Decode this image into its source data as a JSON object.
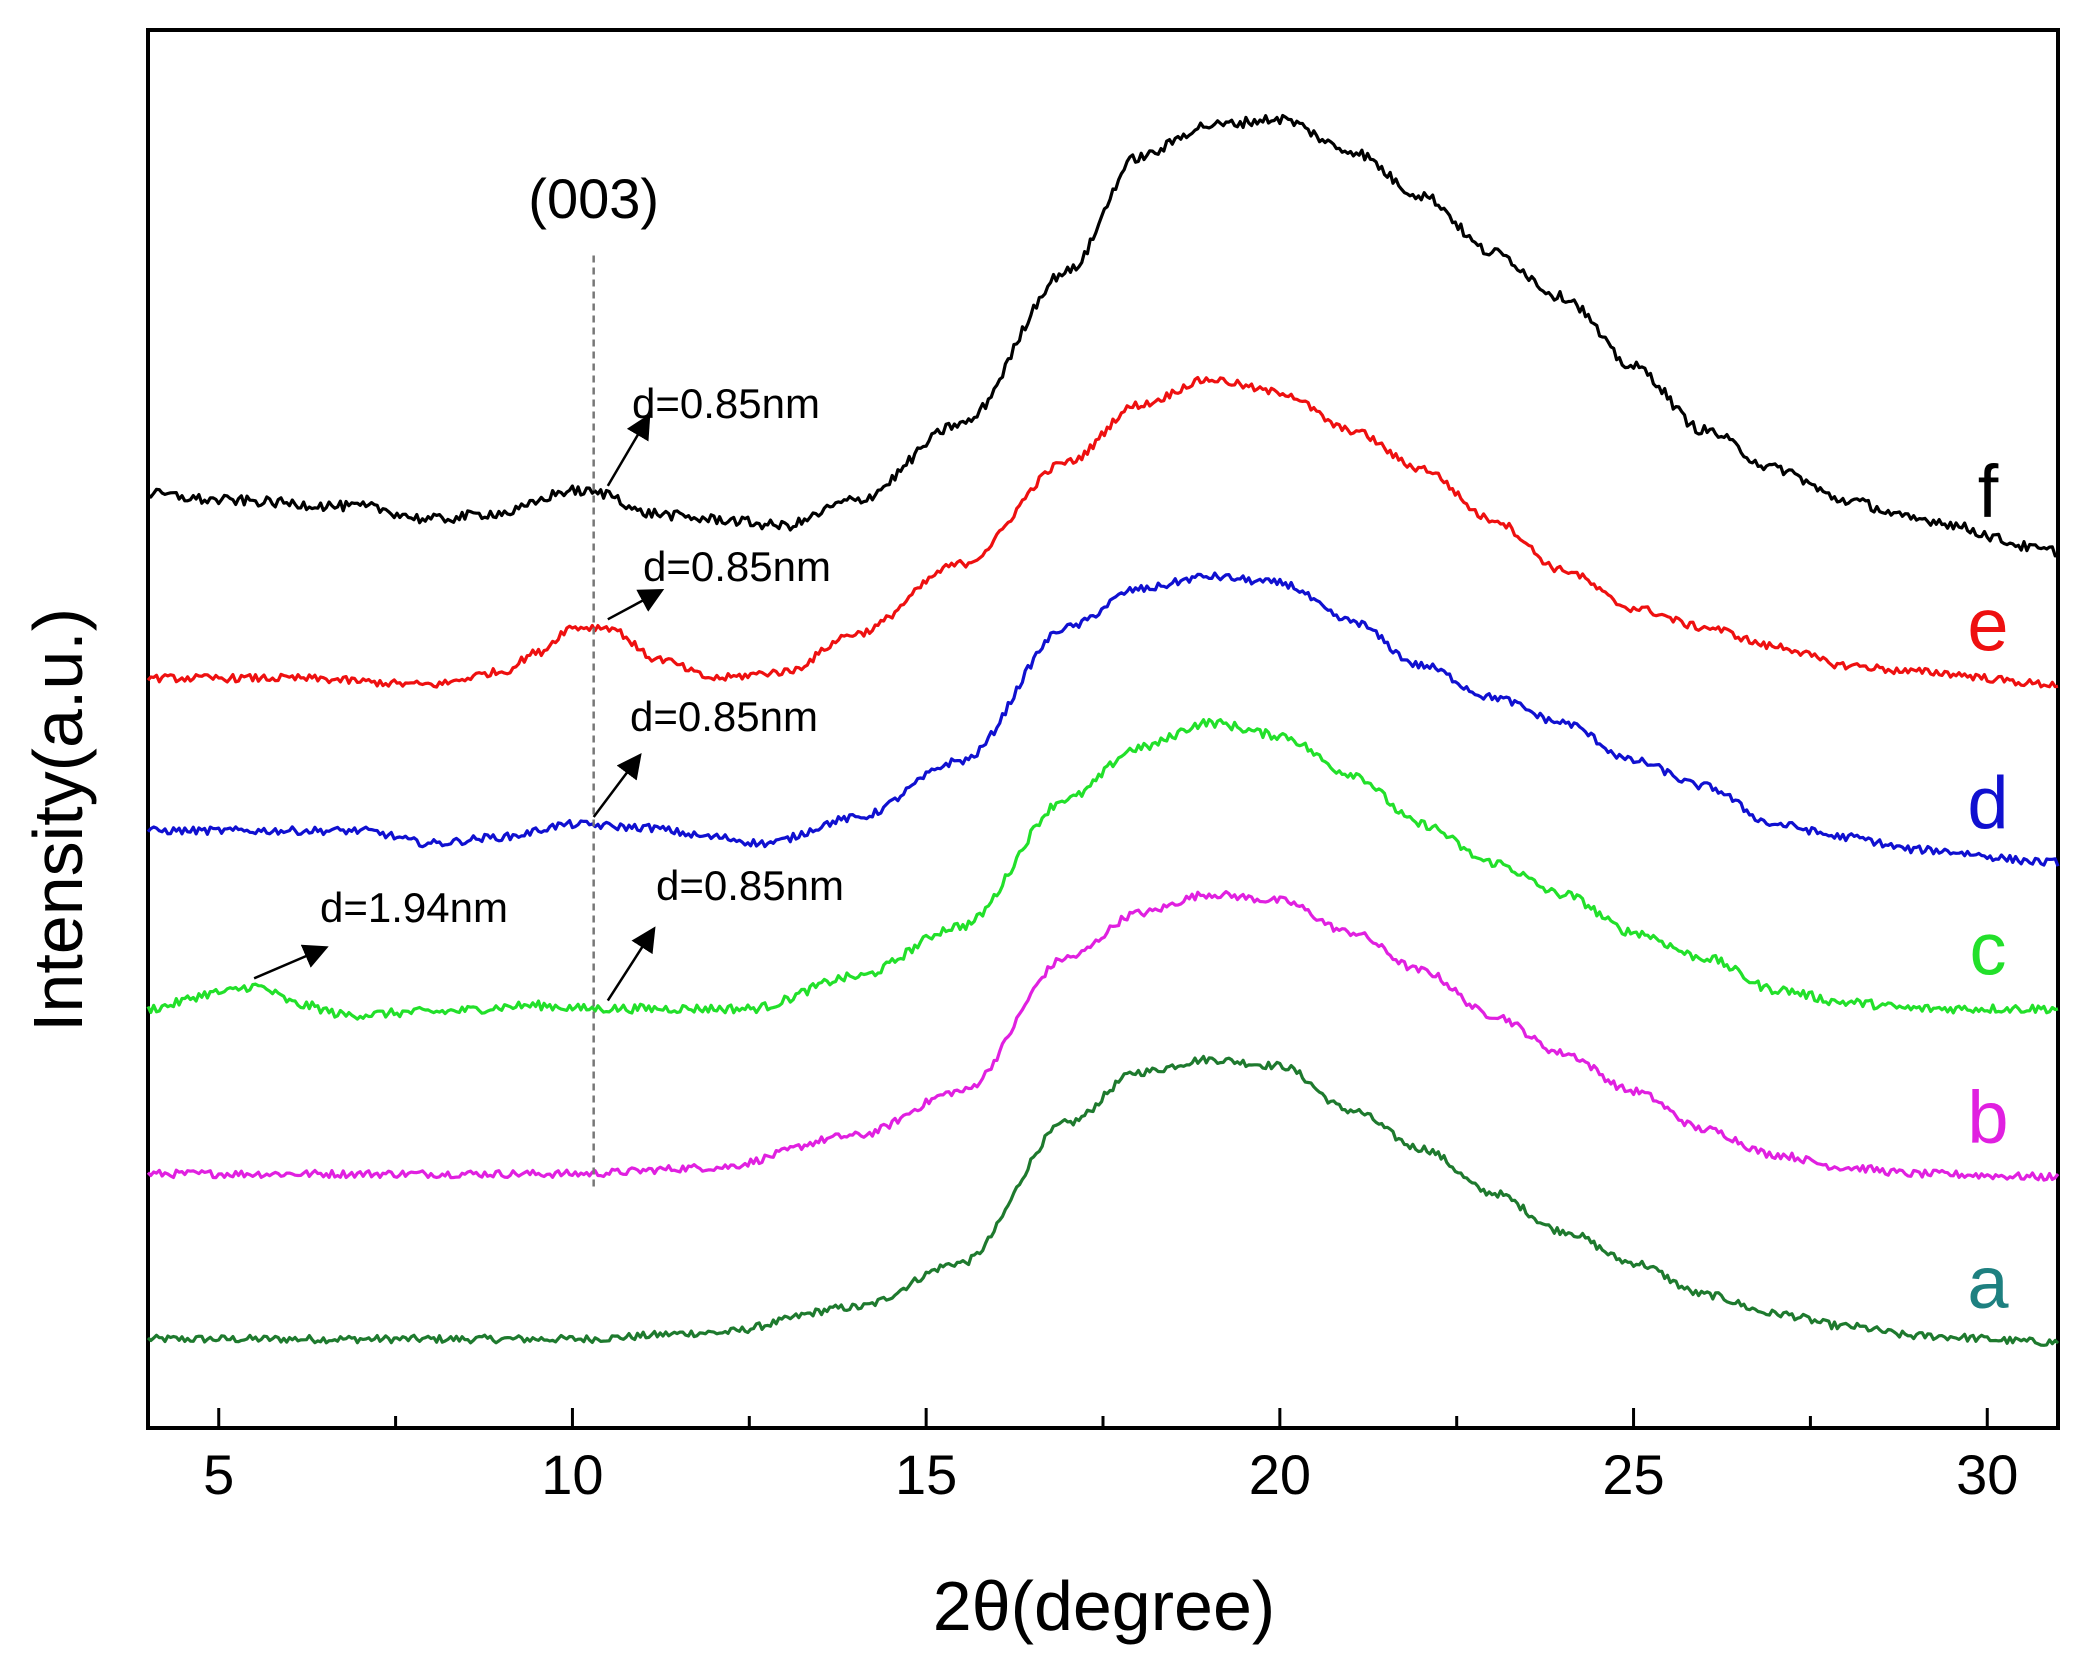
{
  "chart_data": {
    "type": "line",
    "title": "",
    "xlabel": "2θ(degree)",
    "ylabel": "Intensity(a.u.)",
    "xlim": [
      4,
      31
    ],
    "xticks": [
      5,
      10,
      15,
      20,
      25,
      30
    ],
    "xtick_labels": [
      "5",
      "10",
      "15",
      "20",
      "25",
      "30"
    ],
    "y_ticks_shown": false,
    "grid": false,
    "legend": "curve labels at right end",
    "series": [
      {
        "name": "a",
        "label": "a",
        "color": "#1e7a2e",
        "label_color": "#1e8080",
        "offset": 0,
        "noise": 0.6,
        "baseline": [
          [
            4,
            4
          ],
          [
            10,
            4
          ],
          [
            12,
            5
          ],
          [
            14,
            9
          ],
          [
            15.5,
            16
          ],
          [
            17,
            38
          ],
          [
            18,
            46
          ],
          [
            19,
            48
          ],
          [
            20,
            47
          ],
          [
            21,
            40
          ],
          [
            22,
            34
          ],
          [
            23,
            27
          ],
          [
            24,
            21
          ],
          [
            25,
            16
          ],
          [
            26,
            11
          ],
          [
            27,
            8
          ],
          [
            28,
            6
          ],
          [
            29,
            4.5
          ],
          [
            31,
            3.5
          ]
        ]
      },
      {
        "name": "b",
        "label": "b",
        "color": "#e020e0",
        "label_color": "#e020e0",
        "offset": 26,
        "noise": 0.6,
        "baseline": [
          [
            4,
            4
          ],
          [
            10,
            4
          ],
          [
            12,
            5
          ],
          [
            14,
            10
          ],
          [
            15.5,
            17
          ],
          [
            17,
            38
          ],
          [
            18,
            45
          ],
          [
            19,
            48
          ],
          [
            20,
            47
          ],
          [
            21,
            42
          ],
          [
            22,
            36
          ],
          [
            23,
            29
          ],
          [
            24,
            23
          ],
          [
            25,
            17
          ],
          [
            26,
            11
          ],
          [
            27,
            7
          ],
          [
            28,
            5
          ],
          [
            29,
            4
          ],
          [
            31,
            3.5
          ]
        ]
      },
      {
        "name": "c",
        "label": "c",
        "color": "#22e02a",
        "label_color": "#22e02a",
        "offset": 52,
        "noise": 0.7,
        "baseline": [
          [
            4,
            4
          ],
          [
            5,
            6.5
          ],
          [
            5.5,
            7.5
          ],
          [
            6.2,
            4.5
          ],
          [
            6.8,
            3
          ],
          [
            8,
            3.5
          ],
          [
            9.5,
            4.5
          ],
          [
            10.2,
            4
          ],
          [
            11,
            4
          ],
          [
            12.5,
            4
          ],
          [
            14,
            9
          ],
          [
            15.5,
            17
          ],
          [
            17,
            37
          ],
          [
            18,
            45
          ],
          [
            19,
            49
          ],
          [
            20,
            47
          ],
          [
            21,
            41
          ],
          [
            22,
            33
          ],
          [
            23,
            27
          ],
          [
            24,
            22
          ],
          [
            25,
            16
          ],
          [
            26,
            12
          ],
          [
            27,
            7
          ],
          [
            28,
            5
          ],
          [
            29,
            4
          ],
          [
            31,
            4
          ]
        ]
      },
      {
        "name": "d",
        "label": "d",
        "color": "#1010d0",
        "label_color": "#1010d0",
        "offset": 78,
        "noise": 0.6,
        "baseline": [
          [
            4,
            6
          ],
          [
            7,
            6
          ],
          [
            8,
            4
          ],
          [
            9,
            5
          ],
          [
            10,
            7
          ],
          [
            11,
            6.5
          ],
          [
            12,
            5
          ],
          [
            12.7,
            4
          ],
          [
            14,
            8
          ],
          [
            15.5,
            17
          ],
          [
            17,
            38
          ],
          [
            18,
            44
          ],
          [
            19,
            46
          ],
          [
            20,
            45
          ],
          [
            21,
            39
          ],
          [
            22,
            32
          ],
          [
            23,
            27
          ],
          [
            24,
            23
          ],
          [
            25,
            17
          ],
          [
            26,
            13
          ],
          [
            27,
            7
          ],
          [
            28,
            5
          ],
          [
            29,
            3
          ],
          [
            31,
            1
          ]
        ]
      },
      {
        "name": "e",
        "label": "e",
        "color": "#ee1010",
        "label_color": "#ee1010",
        "offset": 104,
        "noise": 0.6,
        "baseline": [
          [
            4,
            4
          ],
          [
            6,
            4
          ],
          [
            8,
            3
          ],
          [
            9,
            5
          ],
          [
            9.5,
            8
          ],
          [
            10,
            12
          ],
          [
            10.5,
            12
          ],
          [
            11.2,
            7
          ],
          [
            12,
            4
          ],
          [
            13,
            5
          ],
          [
            14,
            11
          ],
          [
            15.5,
            22
          ],
          [
            17,
            38
          ],
          [
            18,
            47
          ],
          [
            19,
            51
          ],
          [
            20,
            49
          ],
          [
            21,
            43
          ],
          [
            22,
            37
          ],
          [
            23,
            29
          ],
          [
            24,
            21
          ],
          [
            25,
            15
          ],
          [
            26,
            12
          ],
          [
            27,
            9
          ],
          [
            28,
            6
          ],
          [
            29,
            5
          ],
          [
            31,
            3
          ]
        ]
      },
      {
        "name": "f",
        "label": "f",
        "color": "#000000",
        "label_color": "#000000",
        "offset": 130,
        "noise": 0.8,
        "baseline": [
          [
            4,
            7
          ],
          [
            5,
            6
          ],
          [
            7,
            5
          ],
          [
            8,
            3
          ],
          [
            9,
            4
          ],
          [
            10,
            7.5
          ],
          [
            10.5,
            7
          ],
          [
            11,
            4
          ],
          [
            12,
            3
          ],
          [
            13,
            2
          ],
          [
            14,
            6
          ],
          [
            15.5,
            18
          ],
          [
            17,
            42
          ],
          [
            18,
            60
          ],
          [
            19,
            65
          ],
          [
            20,
            66
          ],
          [
            21,
            61
          ],
          [
            22,
            54
          ],
          [
            23,
            45
          ],
          [
            24,
            38
          ],
          [
            25,
            27
          ],
          [
            26,
            17
          ],
          [
            27,
            11
          ],
          [
            28,
            6
          ],
          [
            29,
            3
          ],
          [
            31,
            -2
          ]
        ]
      }
    ],
    "reference_line": {
      "x": 10.3,
      "label": "(003)"
    },
    "annotations": [
      {
        "text": "d=0.85nm",
        "series": "f",
        "at_x": 10.5
      },
      {
        "text": "d=0.85nm",
        "series": "e",
        "at_x": 10.5
      },
      {
        "text": "d=0.85nm",
        "series": "d",
        "at_x": 10.3
      },
      {
        "text": "d=0.85nm",
        "series": "c",
        "at_x": 10.5
      },
      {
        "text": "d=1.94nm",
        "series": "c",
        "at_x": 5.5
      }
    ]
  }
}
